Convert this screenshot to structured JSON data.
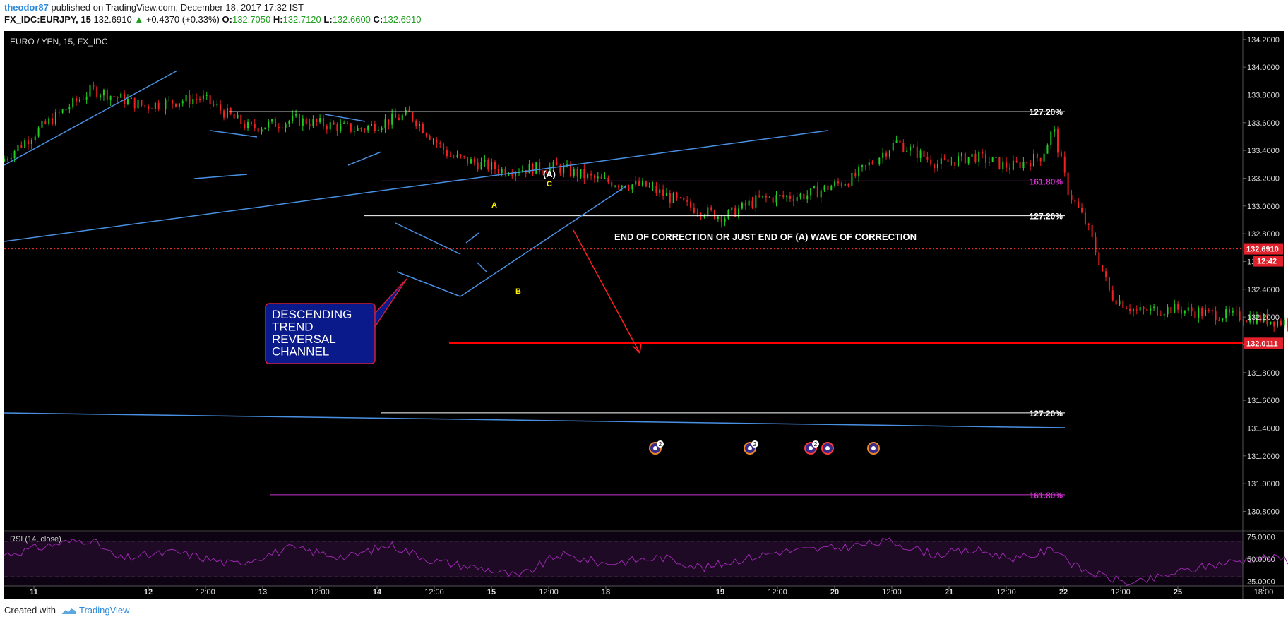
{
  "header": {
    "user": "theodor87",
    "published": " published on TradingView.com, December 18, 2017 17:32 IST",
    "symbol": "FX_IDC:EURJPY, 15",
    "last": "132.6910",
    "change_arrow": "▲",
    "change": "+0.4370 (+0.33%)",
    "o_label": "O:",
    "o": "132.7050",
    "h_label": "H:",
    "h": "132.7120",
    "l_label": "L:",
    "l": "132.6600",
    "c_label": "C:",
    "c": "132.6910"
  },
  "footer": {
    "created": "Created with",
    "brand": "TradingView"
  },
  "colors": {
    "background": "#000000",
    "up": "#22cc22",
    "down": "#ee2222",
    "trendline": "#4a90e2",
    "fib_white": "#ffffff",
    "fib_magenta": "#cc33cc",
    "support": "#ff0000",
    "rsi": "#9c27b0"
  },
  "chart_data": {
    "type": "candlestick",
    "title": "EURO / YEN, 15, FX_IDC",
    "ylim": [
      130.66,
      134.26
    ],
    "y_ticks": [
      "134.2000",
      "134.0000",
      "133.8000",
      "133.6000",
      "133.4000",
      "133.2000",
      "133.0000",
      "132.8000",
      "132.6000",
      "132.4000",
      "132.2000",
      "132.0000",
      "131.8000",
      "131.6000",
      "131.4000",
      "131.2000",
      "131.0000",
      "130.8000"
    ],
    "x_ticks": [
      "11",
      "12",
      "12:00",
      "13",
      "12:00",
      "14",
      "12:00",
      "15",
      "12:00",
      "18",
      "19",
      "12:00",
      "20",
      "12:00",
      "21",
      "12:00",
      "22",
      "12:00",
      "25",
      "18:00"
    ],
    "price_path": [
      [
        0,
        133.32
      ],
      [
        1.5,
        133.58
      ],
      [
        3.2,
        133.84
      ],
      [
        5.0,
        133.72
      ],
      [
        7.0,
        133.78
      ],
      [
        8.7,
        133.56
      ],
      [
        10.3,
        133.62
      ],
      [
        12.5,
        133.55
      ],
      [
        14.3,
        133.66
      ],
      [
        15.7,
        133.36
      ],
      [
        17.5,
        133.26
      ],
      [
        19.4,
        133.28
      ],
      [
        21.0,
        133.18
      ],
      [
        22.6,
        133.14
      ],
      [
        24.0,
        133.0
      ],
      [
        25.3,
        132.92
      ],
      [
        26.5,
        133.05
      ],
      [
        28.2,
        133.08
      ],
      [
        29.8,
        133.2
      ],
      [
        31.3,
        133.46
      ],
      [
        32.8,
        133.3
      ],
      [
        34.0,
        133.36
      ],
      [
        35.3,
        133.28
      ],
      [
        36.4,
        133.36
      ],
      [
        36.8,
        133.56
      ],
      [
        37.3,
        133.12
      ],
      [
        38.0,
        132.85
      ],
      [
        38.8,
        132.36
      ],
      [
        39.7,
        132.24
      ],
      [
        41.0,
        132.26
      ],
      [
        42.4,
        132.22
      ],
      [
        43.6,
        132.2
      ],
      [
        45.0,
        132.16
      ],
      [
        46.0,
        132.32
      ],
      [
        47.0,
        132.44
      ],
      [
        48.0,
        132.6
      ],
      [
        48.6,
        132.68
      ],
      [
        49.3,
        132.5
      ],
      [
        50.3,
        132.34
      ],
      [
        51.3,
        132.28
      ],
      [
        52.2,
        132.36
      ],
      [
        53.2,
        132.46
      ],
      [
        54.2,
        132.52
      ],
      [
        55.0,
        132.78
      ],
      [
        55.8,
        132.8
      ],
      [
        56.6,
        132.7
      ]
    ],
    "fibonacci_levels": [
      {
        "label": "127.20%",
        "price": 133.68
      },
      {
        "label": "161.80%",
        "price": 133.18
      },
      {
        "label": "127.20%",
        "price": 132.93
      },
      {
        "label": "127.20%",
        "price": 131.51
      },
      {
        "label": "161.80%",
        "price": 130.92
      }
    ],
    "price_labels": {
      "current": "132.6910",
      "countdown": "12:42",
      "support": "132.0111"
    },
    "annotations": {
      "callout": [
        "DESCENDING",
        "TREND",
        "REVERSAL",
        "CHANNEL"
      ],
      "note": "END OF CORRECTION OR JUST END OF (A) WAVE OF CORRECTION",
      "wave_A_paren": "(A)",
      "wave_a": "A",
      "wave_b": "B",
      "wave_c": "C"
    },
    "event_badges": [
      "2",
      "2",
      "2"
    ],
    "rsi": {
      "label": "RSI (14, close)",
      "ylim": [
        20,
        80
      ],
      "ticks": [
        "75.0000",
        "50.0000",
        "25.0000"
      ],
      "bands": [
        70,
        30
      ],
      "path": [
        [
          0,
          55
        ],
        [
          2,
          68
        ],
        [
          3,
          72
        ],
        [
          4,
          50
        ],
        [
          6,
          58
        ],
        [
          8,
          44
        ],
        [
          10,
          62
        ],
        [
          12,
          52
        ],
        [
          13.5,
          66
        ],
        [
          15,
          48
        ],
        [
          17,
          38
        ],
        [
          18,
          30
        ],
        [
          19.4,
          55
        ],
        [
          21,
          45
        ],
        [
          23,
          52
        ],
        [
          24.5,
          40
        ],
        [
          25.5,
          48
        ],
        [
          27,
          58
        ],
        [
          29,
          62
        ],
        [
          31,
          70
        ],
        [
          32.5,
          55
        ],
        [
          34,
          60
        ],
        [
          35.5,
          50
        ],
        [
          36.8,
          62
        ],
        [
          37.5,
          40
        ],
        [
          38.5,
          30
        ],
        [
          39.5,
          22
        ],
        [
          41,
          35
        ],
        [
          42.5,
          45
        ],
        [
          44,
          52
        ],
        [
          45.5,
          48
        ],
        [
          46.5,
          60
        ],
        [
          47.5,
          66
        ],
        [
          48.4,
          72
        ],
        [
          49.5,
          55
        ],
        [
          50.5,
          45
        ],
        [
          51.5,
          50
        ],
        [
          52.5,
          58
        ],
        [
          53.5,
          56
        ],
        [
          54.5,
          68
        ],
        [
          55.4,
          73
        ],
        [
          56,
          65
        ],
        [
          56.6,
          60
        ]
      ]
    }
  }
}
